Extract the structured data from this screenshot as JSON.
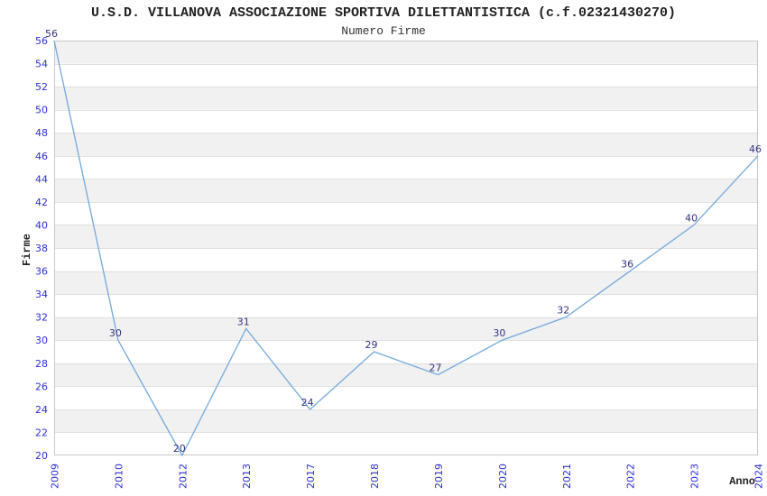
{
  "chart_data": {
    "type": "line",
    "title": "U.S.D. VILLANOVA ASSOCIAZIONE SPORTIVA DILETTANTISTICA (c.f.02321430270)",
    "subtitle": "Numero Firme",
    "xlabel": "Anno",
    "ylabel": "Firme",
    "categories": [
      "2009",
      "2010",
      "2012",
      "2013",
      "2017",
      "2018",
      "2019",
      "2020",
      "2021",
      "2022",
      "2023",
      "2024"
    ],
    "values": [
      56,
      30,
      20,
      31,
      24,
      29,
      27,
      30,
      32,
      36,
      40,
      46
    ],
    "ylim": [
      20,
      56
    ],
    "ytick_step": 2,
    "legend": "none",
    "grid": "alternating-horizontal-bands",
    "colors": {
      "line": "#74a9dc",
      "tick_label": "#2e2ed6",
      "data_label": "#333380",
      "band_dark": "#f1f1f1",
      "band_light": "#ffffff",
      "grid_line": "#e0e0e0",
      "plot_border": "#c8c8c8",
      "title_text": "#222222",
      "subtitle_text": "#333333",
      "axis_title_text": "#222222",
      "background": "#ffffff"
    }
  }
}
